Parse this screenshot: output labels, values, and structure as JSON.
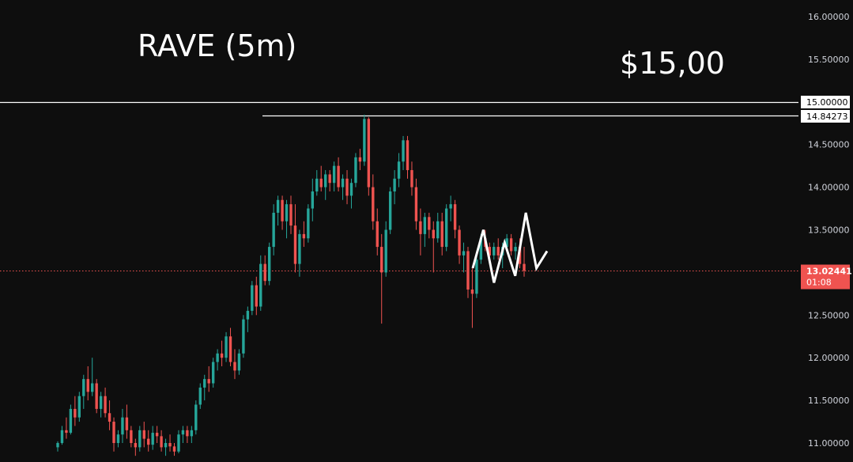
{
  "chart_data": {
    "type": "candlestick",
    "title": "RAVE (5m)",
    "annotation": "$15,00",
    "colors": {
      "background": "#0e0e0e",
      "up": "#26a69a",
      "down": "#ef5350",
      "price_line": "#ef5350",
      "level_line": "#ffffff",
      "arrow": "#ffffff",
      "axis_text": "#d1d4dc"
    },
    "ylim": [
      10.95,
      16.1
    ],
    "y_ticks": [
      "11.00000",
      "11.50000",
      "12.00000",
      "12.50000",
      "13.00000",
      "13.50000",
      "14.00000",
      "14.50000",
      "15.00000",
      "15.50000",
      "16.00000"
    ],
    "horizontal_levels": [
      {
        "value": 15.0,
        "label": "15.00000"
      },
      {
        "value": 14.84273,
        "label": "14.84273"
      }
    ],
    "current_price": {
      "value": 13.02441,
      "label": "13.02441",
      "countdown": "01:08"
    },
    "projection_path": [
      13.05,
      13.5,
      12.88,
      13.35,
      12.96,
      13.7,
      13.05,
      13.25
    ],
    "candles": [
      [
        10.95,
        11.02,
        10.9,
        11.0
      ],
      [
        11.0,
        11.2,
        10.98,
        11.15
      ],
      [
        11.15,
        11.3,
        11.05,
        11.12
      ],
      [
        11.12,
        11.45,
        11.1,
        11.4
      ],
      [
        11.4,
        11.55,
        11.2,
        11.3
      ],
      [
        11.3,
        11.6,
        11.25,
        11.55
      ],
      [
        11.55,
        11.8,
        11.4,
        11.75
      ],
      [
        11.75,
        11.9,
        11.5,
        11.6
      ],
      [
        11.6,
        12.0,
        11.55,
        11.7
      ],
      [
        11.7,
        11.75,
        11.35,
        11.4
      ],
      [
        11.4,
        11.6,
        11.3,
        11.55
      ],
      [
        11.55,
        11.65,
        11.3,
        11.35
      ],
      [
        11.35,
        11.5,
        11.15,
        11.25
      ],
      [
        11.25,
        11.3,
        10.9,
        11.0
      ],
      [
        11.0,
        11.15,
        10.95,
        11.1
      ],
      [
        11.1,
        11.4,
        11.0,
        11.3
      ],
      [
        11.3,
        11.45,
        11.05,
        11.15
      ],
      [
        11.15,
        11.2,
        10.95,
        11.0
      ],
      [
        11.0,
        11.05,
        10.85,
        10.95
      ],
      [
        10.95,
        11.2,
        10.9,
        11.15
      ],
      [
        11.15,
        11.25,
        10.95,
        11.05
      ],
      [
        11.05,
        11.15,
        10.9,
        10.98
      ],
      [
        10.98,
        11.2,
        10.92,
        11.12
      ],
      [
        11.12,
        11.2,
        11.0,
        11.08
      ],
      [
        11.08,
        11.15,
        10.9,
        10.95
      ],
      [
        10.95,
        11.05,
        10.85,
        11.0
      ],
      [
        11.0,
        11.1,
        10.9,
        10.96
      ],
      [
        10.96,
        11.0,
        10.85,
        10.9
      ],
      [
        10.9,
        11.15,
        10.88,
        11.1
      ],
      [
        11.1,
        11.2,
        11.0,
        11.15
      ],
      [
        11.15,
        11.2,
        11.0,
        11.08
      ],
      [
        11.08,
        11.2,
        11.0,
        11.15
      ],
      [
        11.15,
        11.5,
        11.1,
        11.45
      ],
      [
        11.45,
        11.7,
        11.4,
        11.65
      ],
      [
        11.65,
        11.8,
        11.5,
        11.75
      ],
      [
        11.75,
        11.9,
        11.6,
        11.7
      ],
      [
        11.7,
        12.0,
        11.65,
        11.95
      ],
      [
        11.95,
        12.1,
        11.85,
        12.05
      ],
      [
        12.05,
        12.2,
        11.9,
        12.0
      ],
      [
        12.0,
        12.3,
        11.95,
        12.25
      ],
      [
        12.25,
        12.35,
        11.9,
        11.95
      ],
      [
        11.95,
        12.1,
        11.75,
        11.85
      ],
      [
        11.85,
        12.1,
        11.8,
        12.05
      ],
      [
        12.05,
        12.5,
        12.0,
        12.45
      ],
      [
        12.45,
        12.6,
        12.3,
        12.55
      ],
      [
        12.55,
        12.9,
        12.5,
        12.85
      ],
      [
        12.85,
        12.95,
        12.5,
        12.6
      ],
      [
        12.6,
        13.2,
        12.55,
        13.1
      ],
      [
        13.1,
        13.2,
        12.85,
        12.9
      ],
      [
        12.9,
        13.35,
        12.85,
        13.3
      ],
      [
        13.3,
        13.8,
        13.2,
        13.7
      ],
      [
        13.7,
        13.9,
        13.55,
        13.85
      ],
      [
        13.85,
        13.9,
        13.5,
        13.6
      ],
      [
        13.6,
        13.85,
        13.4,
        13.8
      ],
      [
        13.8,
        13.9,
        13.45,
        13.55
      ],
      [
        13.55,
        13.8,
        13.0,
        13.1
      ],
      [
        13.1,
        13.5,
        12.95,
        13.45
      ],
      [
        13.45,
        13.6,
        13.3,
        13.4
      ],
      [
        13.4,
        13.8,
        13.35,
        13.75
      ],
      [
        13.75,
        14.1,
        13.6,
        13.95
      ],
      [
        13.95,
        14.2,
        13.9,
        14.1
      ],
      [
        14.1,
        14.25,
        13.95,
        14.0
      ],
      [
        14.0,
        14.2,
        13.85,
        14.15
      ],
      [
        14.15,
        14.2,
        13.95,
        14.05
      ],
      [
        14.05,
        14.3,
        13.95,
        14.25
      ],
      [
        14.25,
        14.35,
        13.95,
        14.0
      ],
      [
        14.0,
        14.15,
        13.85,
        14.1
      ],
      [
        14.1,
        14.2,
        13.8,
        13.9
      ],
      [
        13.9,
        14.1,
        13.75,
        14.05
      ],
      [
        14.05,
        14.4,
        14.0,
        14.35
      ],
      [
        14.35,
        14.45,
        14.2,
        14.3
      ],
      [
        14.3,
        14.85,
        14.25,
        14.8
      ],
      [
        14.8,
        14.82,
        13.9,
        14.0
      ],
      [
        14.0,
        14.15,
        13.5,
        13.6
      ],
      [
        13.6,
        13.75,
        13.2,
        13.3
      ],
      [
        13.3,
        13.45,
        12.4,
        13.0
      ],
      [
        13.0,
        13.6,
        12.95,
        13.5
      ],
      [
        13.5,
        14.0,
        13.45,
        13.95
      ],
      [
        13.95,
        14.2,
        13.8,
        14.1
      ],
      [
        14.1,
        14.4,
        14.0,
        14.3
      ],
      [
        14.3,
        14.6,
        14.2,
        14.55
      ],
      [
        14.55,
        14.6,
        14.1,
        14.2
      ],
      [
        14.2,
        14.3,
        13.9,
        14.0
      ],
      [
        14.0,
        14.1,
        13.5,
        13.6
      ],
      [
        13.6,
        13.75,
        13.2,
        13.45
      ],
      [
        13.45,
        13.7,
        13.3,
        13.65
      ],
      [
        13.65,
        13.7,
        13.4,
        13.5
      ],
      [
        13.5,
        13.6,
        13.0,
        13.4
      ],
      [
        13.4,
        13.7,
        13.35,
        13.6
      ],
      [
        13.6,
        13.7,
        13.2,
        13.3
      ],
      [
        13.3,
        13.8,
        13.25,
        13.75
      ],
      [
        13.75,
        13.9,
        13.6,
        13.8
      ],
      [
        13.8,
        13.85,
        13.4,
        13.5
      ],
      [
        13.5,
        13.55,
        13.1,
        13.2
      ],
      [
        13.2,
        13.35,
        13.0,
        13.25
      ],
      [
        13.25,
        13.3,
        12.7,
        12.8
      ],
      [
        12.8,
        13.05,
        12.35,
        12.75
      ],
      [
        12.75,
        13.2,
        12.7,
        13.15
      ],
      [
        13.15,
        13.45,
        13.1,
        13.4
      ],
      [
        13.4,
        13.5,
        13.25,
        13.3
      ],
      [
        13.3,
        13.35,
        13.1,
        13.2
      ],
      [
        13.2,
        13.35,
        13.15,
        13.3
      ],
      [
        13.3,
        13.4,
        13.15,
        13.2
      ],
      [
        13.2,
        13.35,
        13.05,
        13.3
      ],
      [
        13.3,
        13.45,
        13.25,
        13.4
      ],
      [
        13.4,
        13.45,
        13.2,
        13.25
      ],
      [
        13.25,
        13.35,
        13.15,
        13.3
      ],
      [
        13.3,
        13.4,
        13.05,
        13.1
      ],
      [
        13.1,
        13.3,
        12.95,
        13.02
      ]
    ]
  }
}
